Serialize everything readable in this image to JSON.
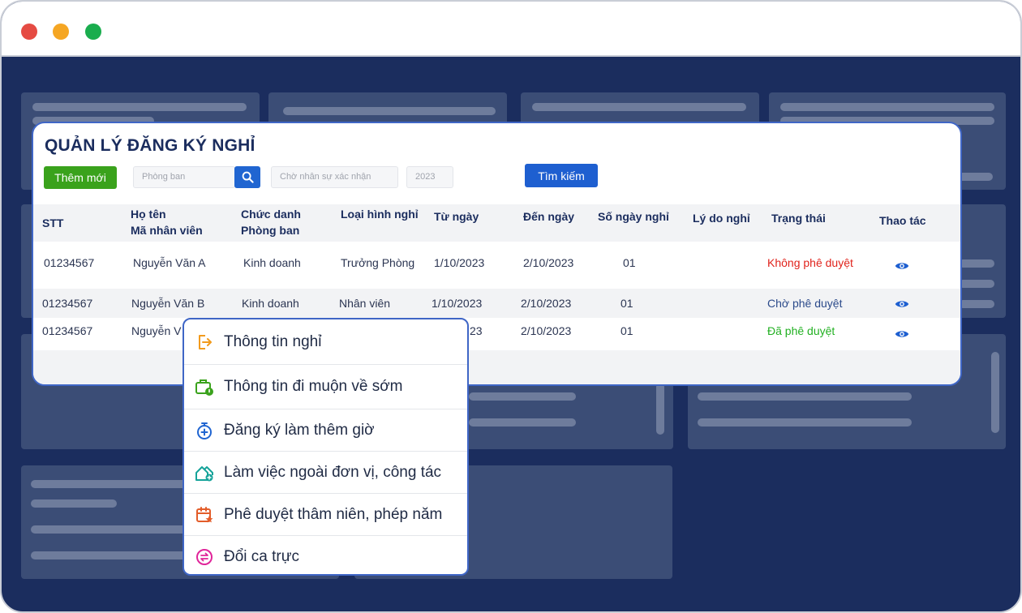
{
  "panel": {
    "title": "QUẢN LÝ ĐĂNG KÝ NGHỈ",
    "add_button": "Thêm mới",
    "department_placeholder": "Phòng ban",
    "status_placeholder": "Chờ nhân sự xác nhận",
    "year_placeholder": "2023",
    "search_button": "Tìm kiếm"
  },
  "table": {
    "headers": {
      "stt": "STT",
      "name": "Họ tên",
      "employee_code": "Mã nhân viên",
      "position": "Chức danh",
      "department": "Phòng ban",
      "leave_type": "Loại hình nghỉ",
      "from_date": "Từ ngày",
      "to_date": "Đến ngày",
      "days": "Số ngày nghỉ",
      "reason": "Lý do nghỉ",
      "status": "Trạng thái",
      "actions": "Thao tác"
    },
    "rows": [
      {
        "stt": "01234567",
        "name": "Nguyễn Văn A",
        "department": "Kinh doanh",
        "leave_type": "Trưởng Phòng",
        "from": "1/10/2023",
        "to": "2/10/2023",
        "days": "01",
        "status": "Không phê duyệt"
      },
      {
        "stt": "01234567",
        "name": "Nguyễn Văn B",
        "department": "Kinh doanh",
        "leave_type": "Nhân viên",
        "from": "1/10/2023",
        "to": "2/10/2023",
        "days": "01",
        "status": "Chờ phê duyệt"
      },
      {
        "stt": "01234567",
        "name": "Nguyễn V",
        "from": "23",
        "to": "2/10/2023",
        "days": "01",
        "status": "Đã phê duyệt"
      }
    ]
  },
  "menu": {
    "items": [
      {
        "label": "Thông tin nghỉ",
        "icon": "exit-door-icon"
      },
      {
        "label": "Thông tin đi muộn về sớm",
        "icon": "briefcase-clock-icon"
      },
      {
        "label": "Đăng ký làm thêm giờ",
        "icon": "stopwatch-plus-icon"
      },
      {
        "label": "Làm việc ngoài đơn vị, công tác",
        "icon": "house-plus-icon"
      },
      {
        "label": "Phê duyệt thâm niên, phép năm",
        "icon": "calendar-star-icon"
      },
      {
        "label": "Đổi ca trực",
        "icon": "swap-circle-icon"
      }
    ]
  },
  "colors": {
    "background": "#1b2d5e",
    "accent": "#1e5fd0",
    "add_green": "#3aa21c",
    "status_rejected": "#e0231c",
    "status_pending": "#2b4a8a",
    "status_approved": "#22b022"
  }
}
